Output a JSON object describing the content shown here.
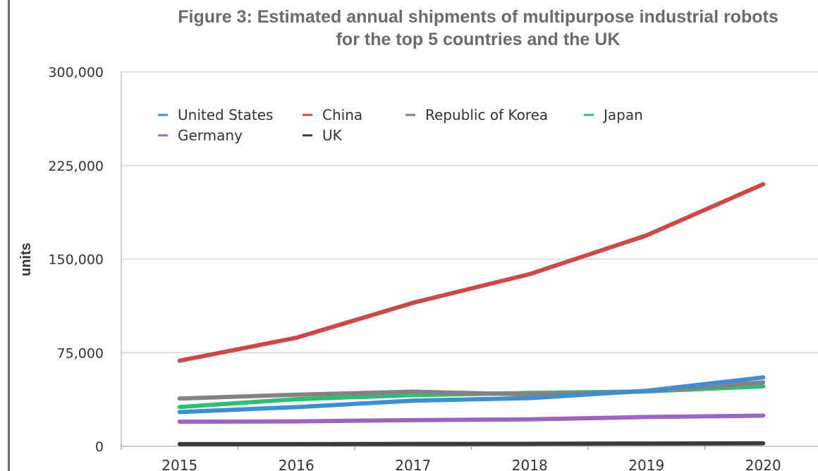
{
  "chart_data": {
    "type": "line",
    "title": "Figure 3: Estimated annual shipments of multipurpose industrial robots",
    "subtitle": "for the top 5 countries and the UK",
    "xlabel": "",
    "ylabel": "units",
    "x": [
      "2015",
      "2016",
      "2017",
      "2018",
      "2019",
      "2020"
    ],
    "ylim": [
      0,
      300000
    ],
    "y_ticks": [
      0,
      75000,
      150000,
      225000,
      300000
    ],
    "y_tick_labels": [
      "0",
      "75,000",
      "150,000",
      "225,000",
      "300,000"
    ],
    "grid": "horizontal",
    "legend_position": "top-left",
    "series": [
      {
        "name": "United States",
        "color": "#3e8ed0",
        "values": [
          27500,
          31400,
          36600,
          38600,
          44500,
          55200
        ]
      },
      {
        "name": "China",
        "color": "#cc4948",
        "values": [
          68600,
          87000,
          115000,
          138000,
          169000,
          210000
        ]
      },
      {
        "name": "Republic of Korea",
        "color": "#838383",
        "values": [
          38300,
          41400,
          43800,
          41500,
          44000,
          51300
        ]
      },
      {
        "name": "Japan",
        "color": "#2fbd76",
        "values": [
          31500,
          37800,
          41000,
          42800,
          44000,
          48100
        ]
      },
      {
        "name": "Germany",
        "color": "#9b66bd",
        "values": [
          19700,
          20000,
          21000,
          21600,
          23500,
          24600
        ]
      },
      {
        "name": "UK",
        "color": "#3a3a3a",
        "values": [
          1800,
          1800,
          1900,
          2000,
          2200,
          2400
        ]
      }
    ]
  }
}
